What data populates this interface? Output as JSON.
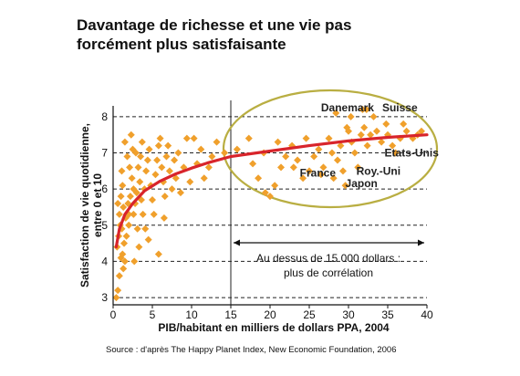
{
  "chart_data": {
    "type": "scatter",
    "title": [
      "Davantage de richesse et une vie pas",
      "forcément plus satisfaisante"
    ],
    "xlabel": "PIB/habitant en milliers de dollars PPA, 2004",
    "ylabel": [
      "Satisfaction de vie quotidienne,",
      "entre 0 et 10"
    ],
    "xlim": [
      0,
      40
    ],
    "ylim": [
      2.8,
      8.3
    ],
    "xticks": [
      0,
      5,
      10,
      15,
      20,
      25,
      30,
      35,
      40
    ],
    "yticks": [
      3,
      4,
      5,
      6,
      7,
      8
    ],
    "grid": {
      "y_dashed": [
        3,
        4,
        5,
        6,
        7,
        8
      ],
      "x_line": 15
    },
    "point_color": "#f0a02c",
    "curve_color": "#d8242b",
    "ellipse_color": "#b9ae42",
    "points": [
      [
        0.4,
        3.0
      ],
      [
        0.6,
        3.2
      ],
      [
        0.8,
        3.6
      ],
      [
        1.0,
        4.1
      ],
      [
        0.5,
        4.4
      ],
      [
        0.7,
        4.7
      ],
      [
        0.9,
        5.0
      ],
      [
        1.2,
        4.2
      ],
      [
        1.4,
        4.5
      ],
      [
        1.1,
        4.9
      ],
      [
        1.6,
        5.2
      ],
      [
        1.3,
        5.5
      ],
      [
        0.8,
        5.3
      ],
      [
        1.5,
        4.0
      ],
      [
        1.7,
        4.7
      ],
      [
        2.0,
        5.0
      ],
      [
        1.9,
        5.6
      ],
      [
        2.2,
        5.8
      ],
      [
        1.0,
        5.8
      ],
      [
        1.2,
        6.1
      ],
      [
        2.4,
        6.3
      ],
      [
        2.6,
        5.3
      ],
      [
        2.8,
        5.6
      ],
      [
        3.0,
        5.9
      ],
      [
        2.1,
        6.6
      ],
      [
        1.8,
        6.9
      ],
      [
        1.5,
        7.3
      ],
      [
        2.5,
        7.1
      ],
      [
        2.3,
        7.5
      ],
      [
        2.9,
        7.0
      ],
      [
        3.2,
        6.6
      ],
      [
        3.4,
        6.2
      ],
      [
        3.6,
        5.7
      ],
      [
        3.8,
        5.3
      ],
      [
        3.1,
        4.9
      ],
      [
        3.3,
        4.4
      ],
      [
        3.5,
        6.9
      ],
      [
        3.7,
        7.3
      ],
      [
        4.0,
        6.0
      ],
      [
        4.2,
        6.5
      ],
      [
        4.4,
        6.8
      ],
      [
        4.6,
        7.1
      ],
      [
        4.8,
        6.1
      ],
      [
        5.0,
        5.7
      ],
      [
        5.2,
        5.3
      ],
      [
        5.4,
        6.4
      ],
      [
        5.6,
        6.8
      ],
      [
        5.8,
        7.2
      ],
      [
        6.0,
        7.4
      ],
      [
        6.2,
        6.6
      ],
      [
        6.4,
        6.2
      ],
      [
        6.6,
        5.8
      ],
      [
        6.8,
        6.9
      ],
      [
        7.0,
        7.2
      ],
      [
        7.2,
        6.5
      ],
      [
        7.5,
        6.0
      ],
      [
        7.8,
        6.8
      ],
      [
        8.0,
        6.3
      ],
      [
        8.3,
        7.0
      ],
      [
        8.6,
        5.9
      ],
      [
        9.0,
        6.6
      ],
      [
        9.4,
        7.4
      ],
      [
        9.8,
        6.2
      ],
      [
        10.3,
        7.4
      ],
      [
        10.7,
        6.7
      ],
      [
        11.2,
        7.1
      ],
      [
        11.6,
        6.3
      ],
      [
        12.2,
        6.6
      ],
      [
        12.6,
        6.9
      ],
      [
        13.2,
        7.3
      ],
      [
        2.7,
        4.0
      ],
      [
        4.5,
        4.6
      ],
      [
        5.8,
        4.2
      ],
      [
        6.5,
        5.2
      ],
      [
        2.0,
        5.3
      ],
      [
        4.1,
        4.9
      ],
      [
        1.3,
        3.8
      ],
      [
        0.6,
        5.6
      ],
      [
        1.1,
        6.5
      ],
      [
        2.6,
        6.0
      ],
      [
        14.2,
        7.0
      ],
      [
        15.8,
        7.1
      ],
      [
        17.3,
        7.4
      ],
      [
        17.8,
        6.7
      ],
      [
        18.5,
        6.3
      ],
      [
        19.2,
        7.0
      ],
      [
        20.0,
        5.8
      ],
      [
        20.6,
        6.1
      ],
      [
        21.4,
        6.6
      ],
      [
        22.0,
        6.9
      ],
      [
        22.8,
        7.2
      ],
      [
        23.5,
        6.8
      ],
      [
        24.2,
        6.3
      ],
      [
        25.0,
        6.5
      ],
      [
        25.6,
        6.9
      ],
      [
        26.2,
        7.1
      ],
      [
        26.8,
        6.6
      ],
      [
        27.5,
        7.4
      ],
      [
        28.1,
        6.3
      ],
      [
        28.6,
        6.8
      ],
      [
        29.0,
        7.2
      ],
      [
        29.3,
        6.5
      ],
      [
        29.6,
        6.1
      ],
      [
        30.0,
        7.6
      ],
      [
        30.4,
        7.3
      ],
      [
        30.8,
        7.0
      ],
      [
        31.2,
        6.6
      ],
      [
        31.6,
        7.5
      ],
      [
        32.0,
        7.7
      ],
      [
        32.4,
        7.2
      ],
      [
        32.8,
        7.5
      ],
      [
        33.2,
        8.0
      ],
      [
        31.8,
        8.2
      ],
      [
        32.3,
        8.2
      ],
      [
        33.6,
        7.6
      ],
      [
        34.2,
        7.3
      ],
      [
        35.0,
        7.5
      ],
      [
        35.6,
        7.2
      ],
      [
        36.6,
        7.4
      ],
      [
        37.4,
        7.6
      ],
      [
        38.2,
        7.4
      ],
      [
        38.8,
        7.5
      ],
      [
        39.3,
        7.6
      ],
      [
        27.9,
        7.0
      ],
      [
        26.5,
        6.4
      ],
      [
        28.4,
        8.1
      ],
      [
        30.3,
        8.0
      ],
      [
        24.6,
        7.4
      ],
      [
        21.0,
        7.3
      ],
      [
        19.4,
        5.9
      ],
      [
        23.0,
        6.6
      ],
      [
        29.8,
        7.7
      ],
      [
        34.8,
        7.8
      ],
      [
        36.0,
        7.0
      ],
      [
        37.0,
        7.8
      ]
    ],
    "curve": [
      [
        0.4,
        4.4
      ],
      [
        0.8,
        4.9
      ],
      [
        1.5,
        5.3
      ],
      [
        2.5,
        5.6
      ],
      [
        4.0,
        5.95
      ],
      [
        6.0,
        6.22
      ],
      [
        8.0,
        6.42
      ],
      [
        10.0,
        6.58
      ],
      [
        12.0,
        6.72
      ],
      [
        15.0,
        6.9
      ],
      [
        20.0,
        7.05
      ],
      [
        25.0,
        7.2
      ],
      [
        30.0,
        7.33
      ],
      [
        35.0,
        7.43
      ],
      [
        40.0,
        7.5
      ]
    ],
    "labels": [
      {
        "text": "Danemark",
        "x": 26.5,
        "y": 8.15
      },
      {
        "text": "Suisse",
        "x": 34.3,
        "y": 8.15
      },
      {
        "text": "Etats-Unis",
        "x": 34.6,
        "y": 6.9
      },
      {
        "text": "France",
        "x": 23.8,
        "y": 6.35
      },
      {
        "text": "Roy.-Uni",
        "x": 31.0,
        "y": 6.4
      },
      {
        "text": "Japon",
        "x": 29.6,
        "y": 6.05
      }
    ],
    "annotation": {
      "text": [
        "Au dessus de 15 000 dollars :",
        "plus de corrélation"
      ],
      "arrow_from": 15,
      "arrow_to": 40
    }
  },
  "source": "Source : d'après The Happy Planet Index, New Economic Foundation, 2006"
}
